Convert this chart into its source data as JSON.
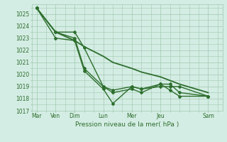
{
  "xlabel": "Pression niveau de la mer( hPa )",
  "bg_color": "#d4ede4",
  "grid_color": "#a0c8b0",
  "line_color": "#2d6e2d",
  "ylim": [
    1017,
    1025.8
  ],
  "yticks": [
    1017,
    1018,
    1019,
    1020,
    1021,
    1022,
    1023,
    1024,
    1025
  ],
  "day_labels": [
    "Mar",
    "Ven",
    "Dim",
    "Lun",
    "Mer",
    "Jeu",
    "Sam"
  ],
  "day_positions": [
    0,
    2,
    4,
    7,
    10,
    13,
    18
  ],
  "xlim": [
    -0.5,
    19.5
  ],
  "lines": [
    {
      "x": [
        0,
        2,
        4,
        5,
        7,
        8,
        10,
        11,
        13,
        14,
        15,
        18
      ],
      "y": [
        1025.5,
        1023.5,
        1023.5,
        1022.2,
        1019.0,
        1018.7,
        1019.0,
        1018.8,
        1019.0,
        1019.0,
        1019.0,
        1018.2
      ],
      "marker": "D",
      "ms": 2.0,
      "lw": 1.0
    },
    {
      "x": [
        0,
        2,
        4,
        5,
        7,
        8,
        10,
        11,
        13,
        14,
        15,
        18
      ],
      "y": [
        1025.5,
        1023.5,
        1023.0,
        1020.5,
        1019.0,
        1018.5,
        1018.8,
        1018.5,
        1019.2,
        1019.2,
        1018.5,
        1018.2
      ],
      "marker": "D",
      "ms": 2.0,
      "lw": 1.0
    },
    {
      "x": [
        0,
        2,
        4,
        5,
        7,
        8,
        10,
        11,
        13,
        14,
        15,
        18
      ],
      "y": [
        1025.5,
        1023.0,
        1022.8,
        1020.3,
        1018.8,
        1017.6,
        1019.0,
        1018.8,
        1019.2,
        1018.7,
        1018.2,
        1018.2
      ],
      "marker": "D",
      "ms": 2.0,
      "lw": 1.0
    },
    {
      "x": [
        0,
        2,
        4,
        5,
        7,
        8,
        10,
        11,
        13,
        14,
        15,
        18
      ],
      "y": [
        1025.5,
        1023.5,
        1022.8,
        1022.3,
        1021.5,
        1021.0,
        1020.5,
        1020.2,
        1019.8,
        1019.5,
        1019.2,
        1018.5
      ],
      "marker": null,
      "ms": 0,
      "lw": 1.3
    }
  ]
}
